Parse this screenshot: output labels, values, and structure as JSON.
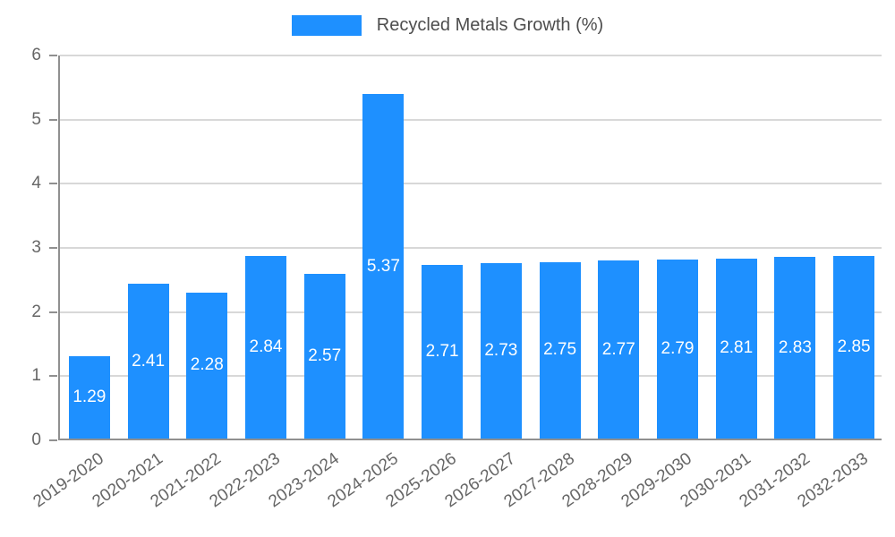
{
  "legend": {
    "label": "Recycled Metals Growth (%)"
  },
  "chart_data": {
    "type": "bar",
    "title": "Recycled Metals Growth (%)",
    "categories": [
      "2019-2020",
      "2020-2021",
      "2021-2022",
      "2022-2023",
      "2023-2024",
      "2024-2025",
      "2025-2026",
      "2026-2027",
      "2027-2028",
      "2028-2029",
      "2029-2030",
      "2030-2031",
      "2031-2032",
      "2032-2033"
    ],
    "values": [
      1.29,
      2.41,
      2.28,
      2.84,
      2.57,
      5.37,
      2.71,
      2.73,
      2.75,
      2.77,
      2.79,
      2.81,
      2.83,
      2.85
    ],
    "xlabel": "",
    "ylabel": "",
    "ylim": [
      0,
      6
    ],
    "yticks": [
      0,
      1,
      2,
      3,
      4,
      5,
      6
    ],
    "grid": true,
    "legend_position": "top",
    "colors": {
      "bar": "#1e90ff",
      "value_label": "#ffffff",
      "axis_text": "#666666",
      "gridline": "#d8d8d8",
      "axis_line": "#909090",
      "legend_text": "#4d4d4d",
      "background": "#ffffff"
    }
  }
}
